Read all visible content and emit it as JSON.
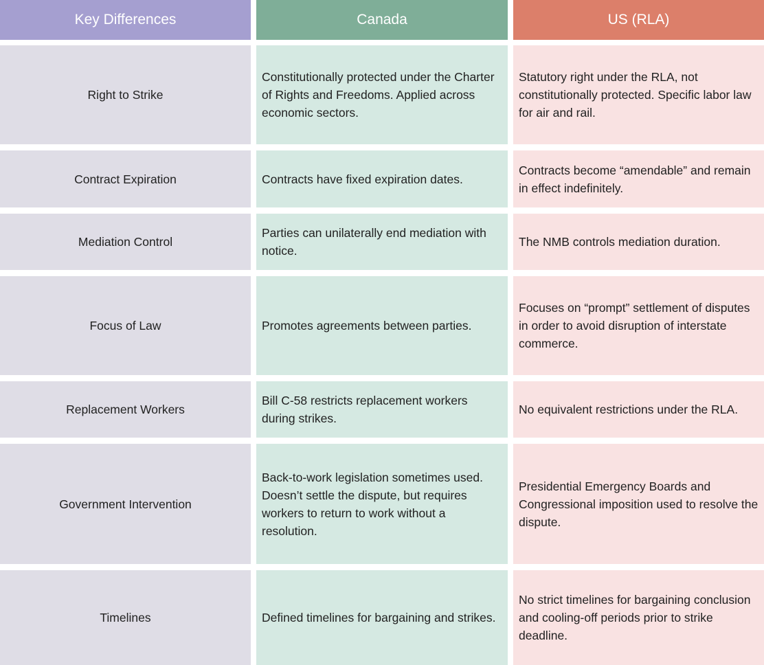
{
  "table": {
    "header": [
      "Key Differences",
      "Canada",
      "US (RLA)"
    ],
    "rows": [
      [
        "Right to Strike",
        "Constitutionally protected under the Charter of Rights and Freedoms. Applied across economic sectors.",
        "Statutory right under the RLA, not constitutionally protected. Specific labor law for air and rail."
      ],
      [
        "Contract Expiration",
        "Contracts have fixed expiration dates.",
        "Contracts become “amendable” and remain in effect indefinitely."
      ],
      [
        "Mediation Control",
        "Parties can unilaterally end mediation with notice.",
        "The NMB controls mediation duration."
      ],
      [
        "Focus of Law",
        "Promotes agreements between parties.",
        "Focuses on “prompt” settlement of disputes in order to avoid disruption of interstate commerce."
      ],
      [
        "Replacement Workers",
        "Bill C-58 restricts replacement workers during strikes.",
        "No equivalent restrictions under the RLA."
      ],
      [
        "Government Intervention",
        "Back-to-work legislation sometimes used. Doesn’t settle the dispute, but requires workers to return to work without a resolution.",
        "Presidential Emergency Boards and Congressional imposition used to resolve the dispute."
      ],
      [
        "Timelines",
        "Defined timelines for bargaining and strikes.",
        "No strict timelines for bargaining conclusion and cooling-off periods prior to strike deadline."
      ]
    ]
  }
}
